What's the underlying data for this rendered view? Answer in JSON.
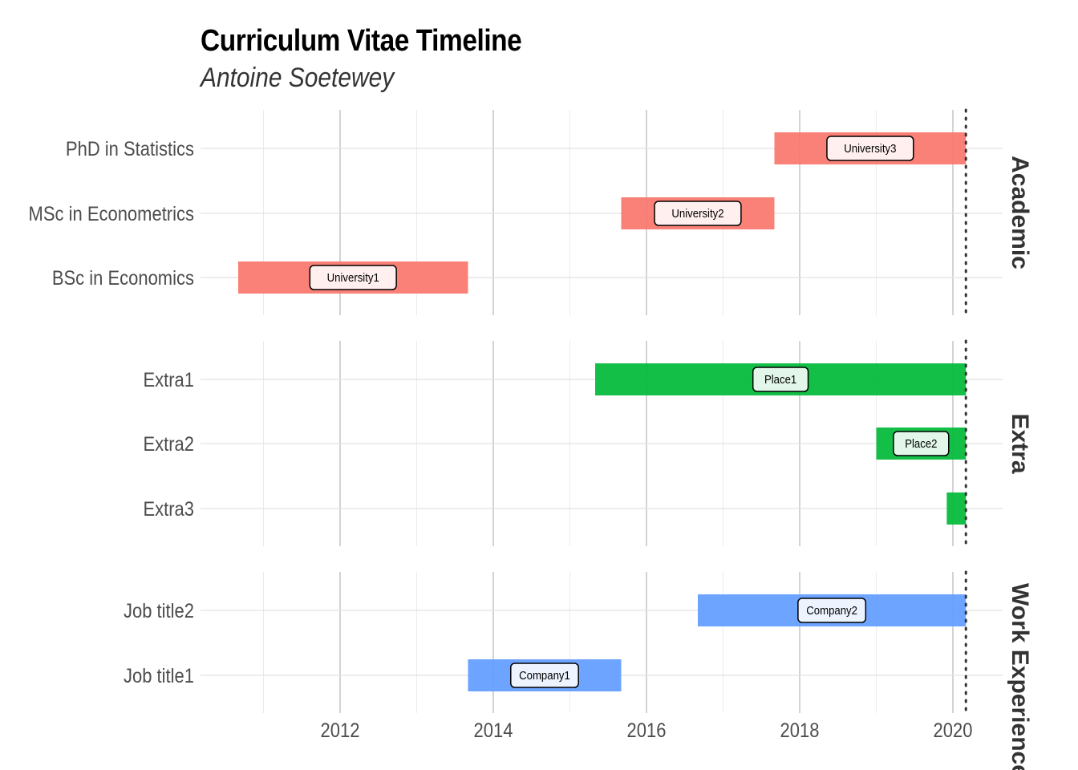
{
  "chart_data": {
    "type": "timeline",
    "title": "Curriculum Vitae Timeline",
    "subtitle": "Antoine Soetewey",
    "x_ticks": [
      2012,
      2014,
      2016,
      2018,
      2020
    ],
    "xlim": [
      2010.3,
      2020.65
    ],
    "today_line": 2020.17,
    "colors": {
      "Academic": "#f8766d",
      "Extra": "#00ba38",
      "Work Experience": "#619cff"
    },
    "panels": [
      {
        "name": "Academic",
        "rows": [
          {
            "label": "PhD in Statistics",
            "start": 2017.67,
            "end": 2020.17,
            "place": "University3"
          },
          {
            "label": "MSc in Econometrics",
            "start": 2015.67,
            "end": 2017.67,
            "place": "University2"
          },
          {
            "label": "BSc in Economics",
            "start": 2010.67,
            "end": 2013.67,
            "place": "University1"
          }
        ]
      },
      {
        "name": "Extra",
        "rows": [
          {
            "label": "Extra1",
            "start": 2015.33,
            "end": 2020.17,
            "place": "Place1"
          },
          {
            "label": "Extra2",
            "start": 2019.0,
            "end": 2020.17,
            "place": "Place2"
          },
          {
            "label": "Extra3",
            "start": 2019.92,
            "end": 2020.17,
            "place": ""
          }
        ]
      },
      {
        "name": "Work Experience",
        "rows": [
          {
            "label": "Job title2",
            "start": 2016.67,
            "end": 2020.17,
            "place": "Company2"
          },
          {
            "label": "Job title1",
            "start": 2013.67,
            "end": 2015.67,
            "place": "Company1"
          }
        ]
      }
    ],
    "grid": true,
    "legend": "none"
  }
}
